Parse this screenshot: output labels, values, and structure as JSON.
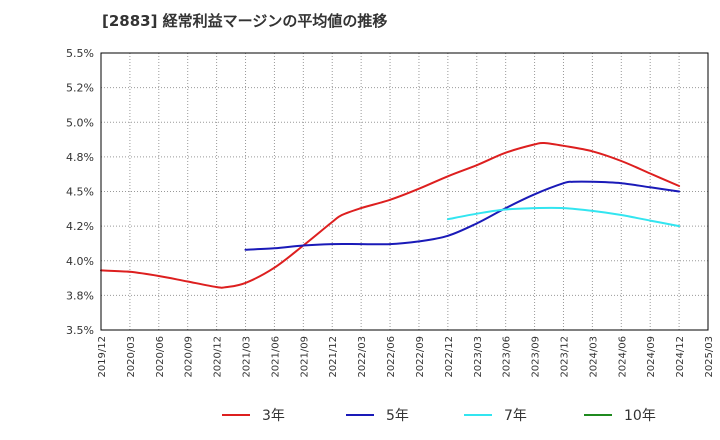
{
  "chart_data": {
    "type": "line",
    "title": "[2883]  経常利益マージンの平均値の推移",
    "xlabel": "",
    "ylabel": "",
    "x_ticks": [
      "2019/12",
      "2020/03",
      "2020/06",
      "2020/09",
      "2020/12",
      "2021/03",
      "2021/06",
      "2021/09",
      "2021/12",
      "2022/03",
      "2022/06",
      "2022/09",
      "2022/12",
      "2023/03",
      "2023/06",
      "2023/09",
      "2023/12",
      "2024/03",
      "2024/06",
      "2024/09",
      "2024/12",
      "2025/03"
    ],
    "y_ticks": [
      "3.5%",
      "3.8%",
      "4.0%",
      "4.2%",
      "4.5%",
      "4.8%",
      "5.0%",
      "5.2%",
      "5.5%"
    ],
    "ylim": [
      3.5,
      5.5
    ],
    "grid": true,
    "legend_position": "bottom",
    "series": [
      {
        "name": "3年",
        "color": "#dd1f1f",
        "x": [
          "2019/12",
          "2020/03",
          "2020/06",
          "2020/09",
          "2020/12",
          "2021/01",
          "2021/03",
          "2021/06",
          "2021/09",
          "2021/12",
          "2022/01",
          "2022/03",
          "2022/06",
          "2022/09",
          "2022/12",
          "2023/03",
          "2023/06",
          "2023/09",
          "2023/10",
          "2023/12",
          "2024/03",
          "2024/06",
          "2024/09",
          "2024/12"
        ],
        "values": [
          3.93,
          3.92,
          3.89,
          3.85,
          3.81,
          3.81,
          3.84,
          3.95,
          4.11,
          4.28,
          4.33,
          4.38,
          4.44,
          4.52,
          4.61,
          4.69,
          4.78,
          4.84,
          4.85,
          4.83,
          4.79,
          4.72,
          4.63,
          4.54
        ]
      },
      {
        "name": "5年",
        "color": "#1a1ab8",
        "x": [
          "2021/03",
          "2021/06",
          "2021/09",
          "2021/12",
          "2022/03",
          "2022/06",
          "2022/09",
          "2022/12",
          "2023/03",
          "2023/06",
          "2023/09",
          "2023/12",
          "2024/01",
          "2024/03",
          "2024/06",
          "2024/09",
          "2024/12"
        ],
        "values": [
          4.08,
          4.09,
          4.11,
          4.12,
          4.12,
          4.12,
          4.14,
          4.18,
          4.27,
          4.38,
          4.48,
          4.56,
          4.57,
          4.57,
          4.56,
          4.53,
          4.5
        ]
      },
      {
        "name": "7年",
        "color": "#33e5f0",
        "x": [
          "2022/12",
          "2023/03",
          "2023/06",
          "2023/09",
          "2023/12",
          "2024/03",
          "2024/06",
          "2024/09",
          "2024/12"
        ],
        "values": [
          4.3,
          4.34,
          4.37,
          4.38,
          4.38,
          4.36,
          4.33,
          4.29,
          4.25
        ]
      },
      {
        "name": "10年",
        "color": "#1f8a1f",
        "x": [],
        "values": []
      }
    ]
  }
}
